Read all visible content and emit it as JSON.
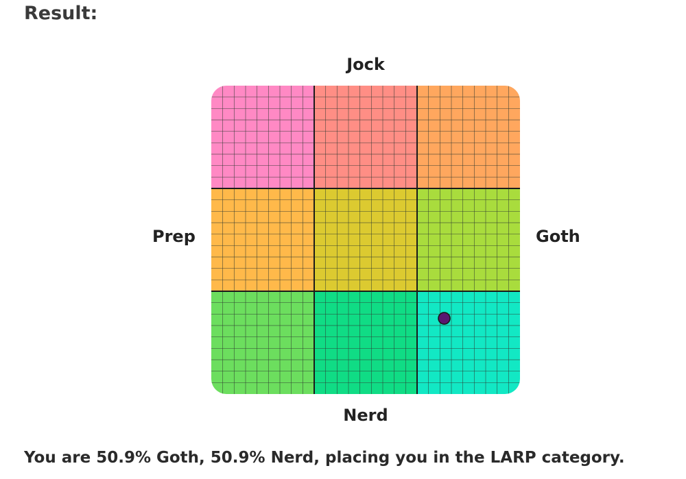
{
  "heading": "Result:",
  "chart_data": {
    "type": "scatter",
    "title": "",
    "axes": {
      "top": "Jock",
      "bottom": "Nerd",
      "left": "Prep",
      "right": "Goth"
    },
    "x_range": [
      -100,
      100
    ],
    "y_range": [
      -100,
      100
    ],
    "grid": true,
    "grid_cells_per_side": 27,
    "regions": [
      {
        "row": 0,
        "col": 0,
        "color": "#ff89c4"
      },
      {
        "row": 0,
        "col": 1,
        "color": "#ff8e85"
      },
      {
        "row": 0,
        "col": 2,
        "color": "#ffa75e"
      },
      {
        "row": 1,
        "col": 0,
        "color": "#ffb94a"
      },
      {
        "row": 1,
        "col": 1,
        "color": "#dcca30"
      },
      {
        "row": 1,
        "col": 2,
        "color": "#a9dc3d"
      },
      {
        "row": 2,
        "col": 0,
        "color": "#6cde5e"
      },
      {
        "row": 2,
        "col": 1,
        "color": "#10dc85"
      },
      {
        "row": 2,
        "col": 2,
        "color": "#12e8c4"
      }
    ],
    "points": [
      {
        "x": 50.9,
        "y": -50.9,
        "color": "#5a1770"
      }
    ]
  },
  "summary": "You are 50.9% Goth, 50.9% Nerd, placing you in the LARP category."
}
